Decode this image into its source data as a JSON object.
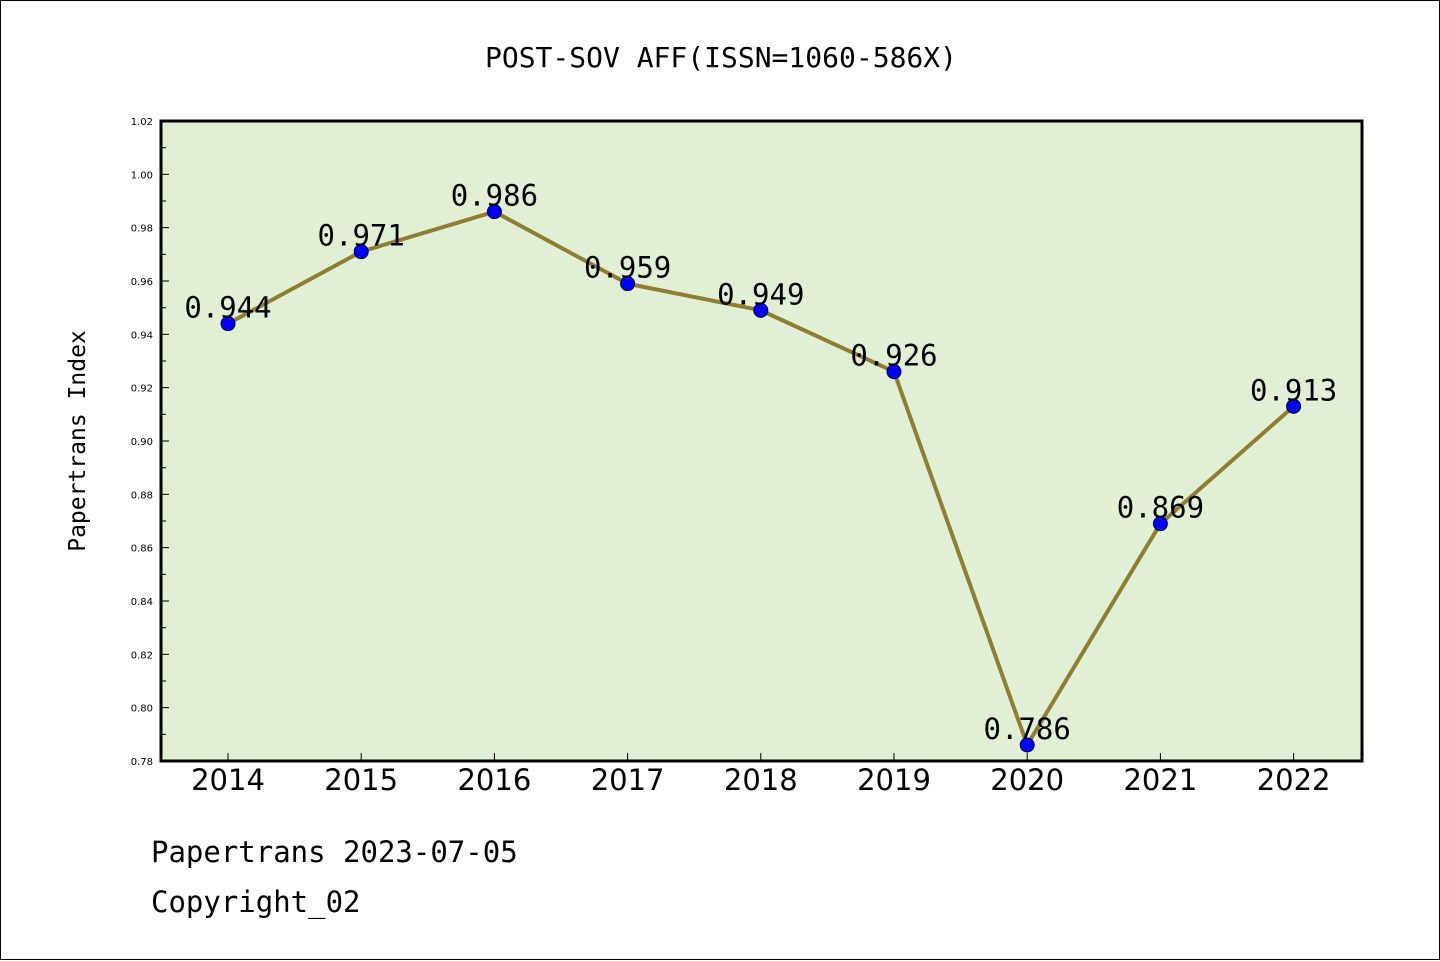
{
  "chart_data": {
    "type": "line",
    "title": "POST-SOV AFF(ISSN=1060-586X)",
    "xlabel": "",
    "ylabel": "Papertrans Index",
    "categories": [
      "2014",
      "2015",
      "2016",
      "2017",
      "2018",
      "2019",
      "2020",
      "2021",
      "2022"
    ],
    "series": [
      {
        "values": [
          0.944,
          0.971,
          0.986,
          0.959,
          0.949,
          0.926,
          0.786,
          0.869,
          0.913
        ],
        "labels": [
          "0.944",
          "0.971",
          "0.986",
          "0.959",
          "0.949",
          "0.926",
          "0.786",
          "0.869",
          "0.913"
        ]
      }
    ],
    "ylim": [
      0.78,
      1.02
    ],
    "yticks": [
      "0.78",
      "0.80",
      "0.82",
      "0.84",
      "0.86",
      "0.88",
      "0.90",
      "0.92",
      "0.94",
      "0.96",
      "0.98",
      "1.00",
      "1.02"
    ],
    "grid": false,
    "legend": "none",
    "colors": {
      "plot_background": "#e1efd5",
      "line": "#8e7e32",
      "marker": "#0000ff"
    }
  },
  "footer": {
    "line1": "Papertrans 2023-07-05",
    "line2": "Copyright_02"
  }
}
